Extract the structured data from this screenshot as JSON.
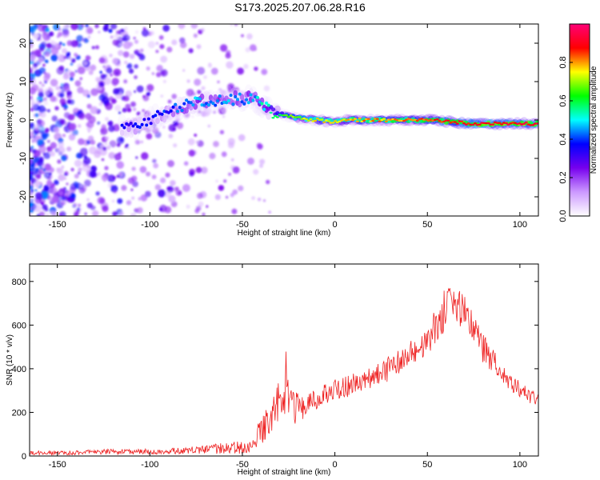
{
  "title": "S173.2025.207.06.28.R16",
  "chart_data": [
    {
      "type": "heatmap",
      "xlabel": "Height of straight line (km)",
      "ylabel": "Frequency (Hz)",
      "xlim": [
        -165,
        110
      ],
      "ylim": [
        -25,
        25
      ],
      "x_ticks": [
        -150,
        -100,
        -50,
        0,
        50,
        100
      ],
      "y_ticks": [
        -20,
        -10,
        0,
        10,
        20
      ],
      "colorbar": {
        "label": "Normalized spectral amplitude",
        "range": [
          0,
          1
        ],
        "ticks": [
          "0.0",
          "0.2",
          "0.4",
          "0.6",
          "0.8"
        ],
        "tick_values": [
          0.0,
          0.2,
          0.4,
          0.6,
          0.8
        ],
        "colors": [
          "#ffffff",
          "#cc99ff",
          "#7700ee",
          "#0000ff",
          "#00ffff",
          "#00ff00",
          "#ffff00",
          "#ff0000",
          "#ff0077"
        ]
      },
      "ridge": {
        "height_km": [
          -110,
          -95,
          -85,
          -75,
          -65,
          -55,
          -45,
          -40,
          -35,
          -30,
          -20,
          -10,
          0,
          10,
          25,
          50,
          75,
          100,
          110
        ],
        "frequency_hz": [
          -2,
          1,
          3,
          4.5,
          5,
          5.5,
          5.5,
          4.5,
          2,
          1.5,
          0.5,
          0,
          -0.5,
          0,
          0,
          0,
          -1,
          -1,
          -1
        ],
        "amplitude": [
          0.35,
          0.35,
          0.4,
          0.45,
          0.45,
          0.45,
          0.45,
          0.5,
          0.55,
          0.6,
          0.7,
          0.75,
          0.75,
          0.8,
          0.8,
          0.85,
          0.9,
          0.9,
          0.9
        ]
      }
    },
    {
      "type": "line",
      "xlabel": "Height of straight line (km)",
      "ylabel": "SNR (10 * v/v)",
      "xlim": [
        -165,
        110
      ],
      "ylim": [
        0,
        880
      ],
      "x_ticks": [
        -150,
        -100,
        -50,
        0,
        50,
        100
      ],
      "y_ticks": [
        0,
        200,
        400,
        600,
        800
      ],
      "color": "#ee2222",
      "x": [
        -165,
        -140,
        -120,
        -100,
        -80,
        -70,
        -60,
        -50,
        -45,
        -40,
        -35,
        -30,
        -27,
        -25,
        -20,
        -15,
        -10,
        -5,
        0,
        10,
        20,
        30,
        40,
        50,
        55,
        60,
        65,
        70,
        75,
        80,
        90,
        100,
        110
      ],
      "y": [
        15,
        15,
        20,
        20,
        25,
        30,
        35,
        40,
        60,
        110,
        180,
        260,
        300,
        230,
        220,
        240,
        260,
        290,
        300,
        330,
        360,
        400,
        460,
        520,
        600,
        680,
        700,
        650,
        590,
        500,
        390,
        300,
        250
      ],
      "noise_amplitude": [
        10,
        10,
        12,
        12,
        15,
        20,
        25,
        30,
        40,
        60,
        80,
        100,
        120,
        90,
        70,
        60,
        50,
        50,
        50,
        50,
        50,
        60,
        60,
        70,
        90,
        100,
        100,
        90,
        80,
        70,
        50,
        40,
        30
      ]
    }
  ]
}
